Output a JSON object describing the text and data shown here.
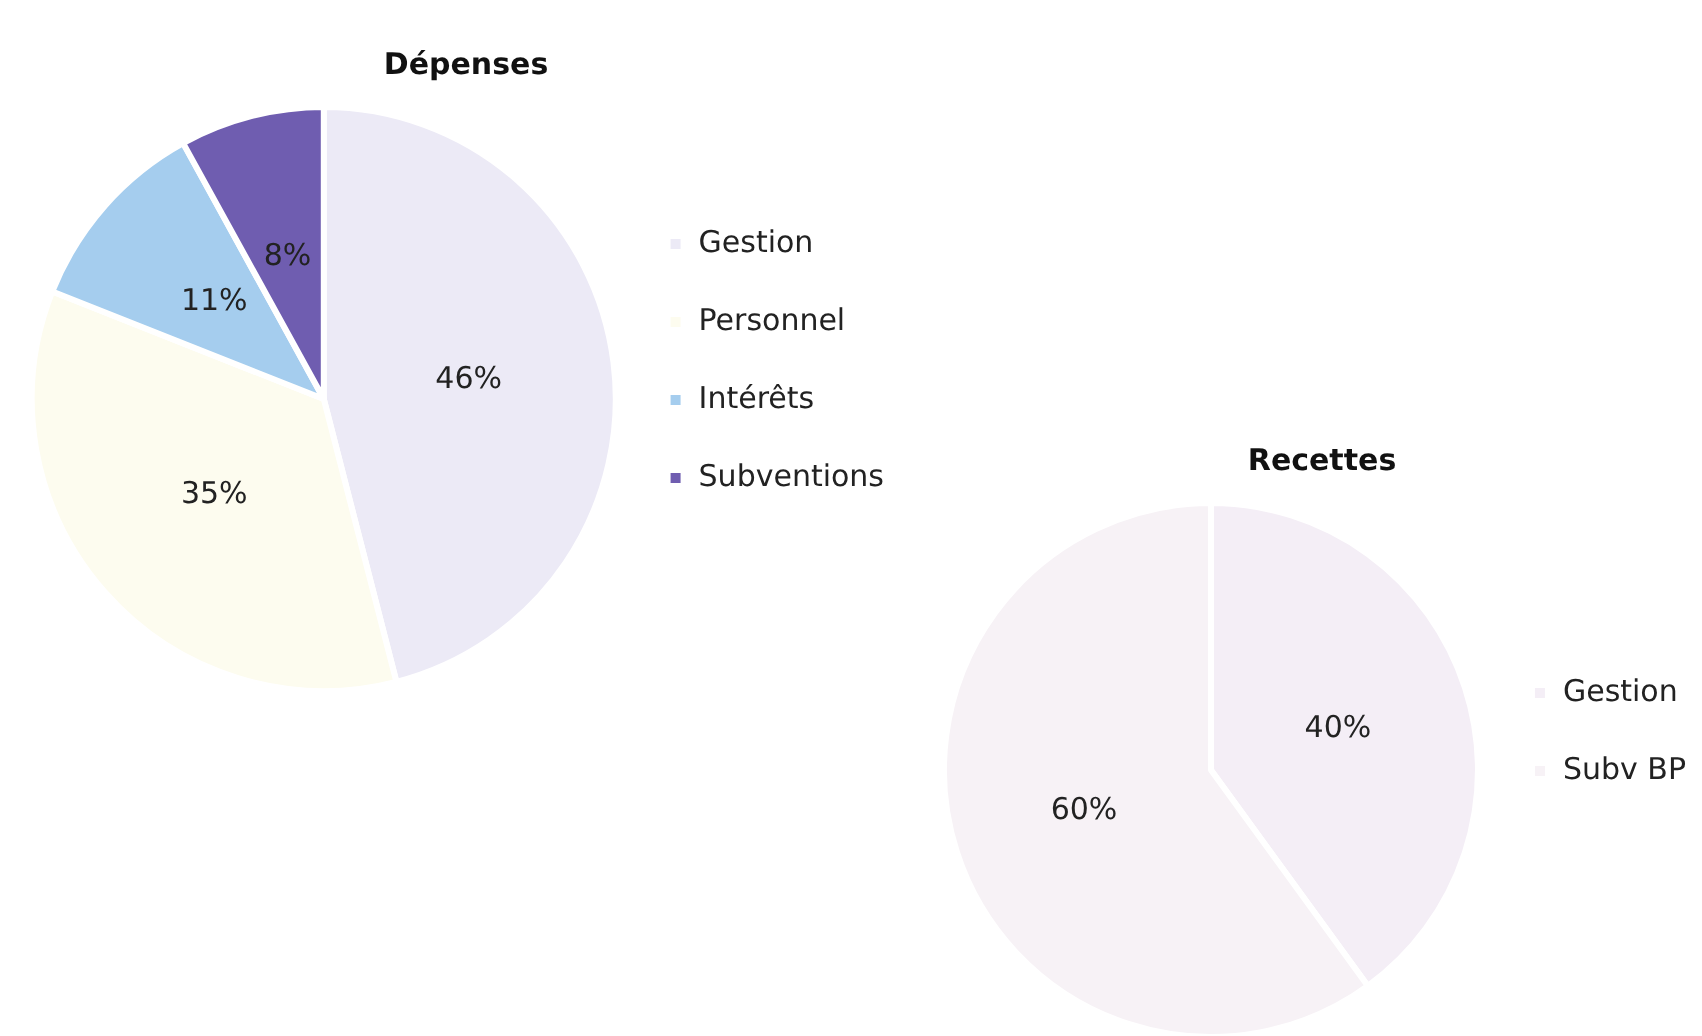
{
  "chart_data": [
    {
      "type": "pie",
      "title": "Dépenses",
      "categories": [
        "Gestion",
        "Personnel",
        "Intérêts",
        "Subventions"
      ],
      "values": [
        46,
        35,
        11,
        8
      ],
      "colors": [
        "#eceaf6",
        "#fdfcef",
        "#a5cdee",
        "#6f5db0"
      ],
      "value_labels": [
        "46%",
        "35%",
        "11%",
        "8%"
      ],
      "legend": "right"
    },
    {
      "type": "pie",
      "title": "Recettes",
      "categories": [
        "Gestion",
        "Subv BP"
      ],
      "values": [
        40,
        60
      ],
      "colors": [
        "#f4eef6",
        "#f7f2f6"
      ],
      "value_labels": [
        "40%",
        "60%"
      ],
      "legend": "right"
    }
  ]
}
